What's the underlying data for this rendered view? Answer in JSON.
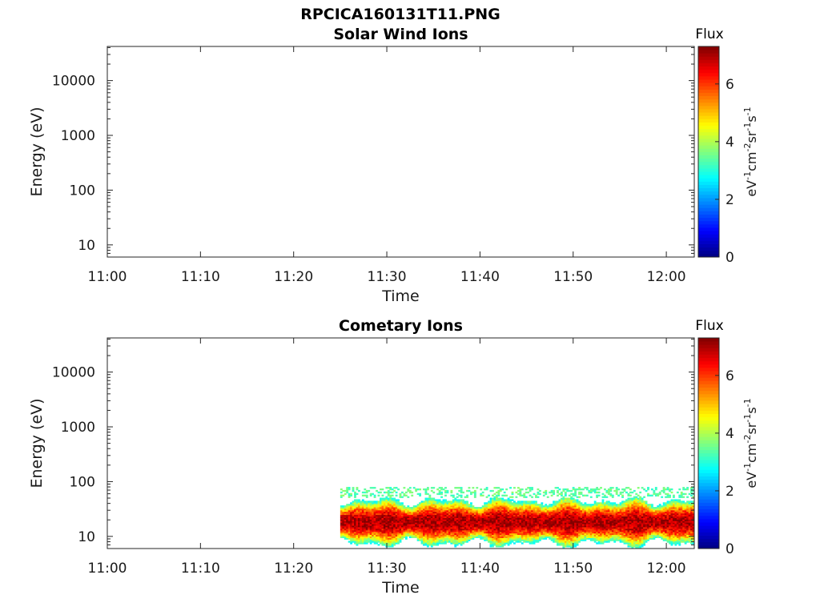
{
  "figure_title": "RPCICA160131T11.PNG",
  "chart_data": [
    {
      "type": "heatmap",
      "title": "Solar Wind Ions",
      "xlabel": "Time",
      "ylabel": "Energy (eV)",
      "x_ticks": [
        "11:00",
        "11:10",
        "11:20",
        "11:30",
        "11:40",
        "11:50",
        "12:00"
      ],
      "xlim": [
        "11:00",
        "12:03"
      ],
      "y_scale": "log",
      "y_ticks": [
        10,
        100,
        1000,
        10000
      ],
      "y_tick_labels": [
        "10",
        "100",
        "1000",
        "10000"
      ],
      "ylim": [
        6,
        42000
      ],
      "colorbar": {
        "title": "Flux",
        "label": "eV-1cm-2sr-1s-1",
        "ticks": [
          0,
          2,
          4,
          6
        ],
        "tick_labels": [
          "0",
          "2",
          "4",
          "6"
        ],
        "range": [
          0,
          7.3
        ],
        "colormap": "jet"
      },
      "data": []
    },
    {
      "type": "heatmap",
      "title": "Cometary Ions",
      "xlabel": "Time",
      "ylabel": "Energy (eV)",
      "x_ticks": [
        "11:00",
        "11:10",
        "11:20",
        "11:30",
        "11:40",
        "11:50",
        "12:00"
      ],
      "xlim": [
        "11:00",
        "12:03"
      ],
      "y_scale": "log",
      "y_ticks": [
        10,
        100,
        1000,
        10000
      ],
      "y_tick_labels": [
        "10",
        "100",
        "1000",
        "10000"
      ],
      "ylim": [
        6,
        42000
      ],
      "colorbar": {
        "title": "Flux",
        "label": "eV-1cm-2sr-1s-1",
        "ticks": [
          0,
          2,
          4,
          6
        ],
        "tick_labels": [
          "0",
          "2",
          "4",
          "6"
        ],
        "range": [
          0,
          7.3
        ],
        "colormap": "jet"
      },
      "data_time_range": [
        "11:25",
        "12:03"
      ],
      "data_energy_range_eV": [
        6,
        80
      ],
      "peak_energy_eV": [
        12,
        28
      ],
      "peak_flux": 7,
      "edge_flux": 3
    }
  ]
}
